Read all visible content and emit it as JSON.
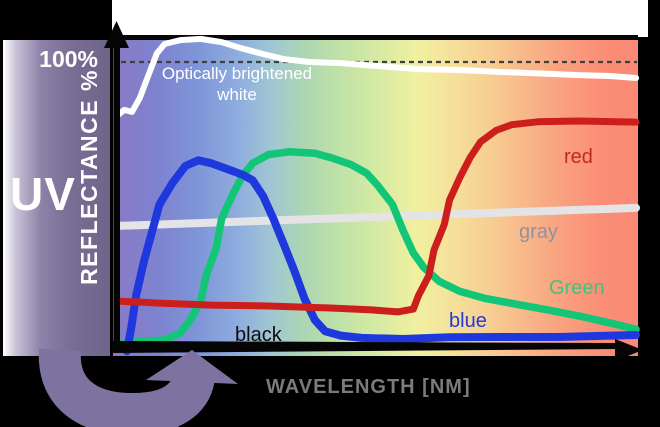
{
  "axes": {
    "y_label": "REFLECTANCE %",
    "y_max_label": "100%",
    "x_label": "WAVELENGTH [NM]",
    "uv_region_label": "UV"
  },
  "labels": {
    "optically_brightened_white": "Optically brightened\nwhite",
    "red": "red",
    "gray": "gray",
    "green": "Green",
    "blue": "blue",
    "black": "black"
  },
  "label_colors": {
    "optically_brightened_white": "#ffffff",
    "red": "#c22b20",
    "gray": "#8d93a2",
    "green": "#3fc47b",
    "blue": "#2438da",
    "black": "#0d0d0d",
    "wavelength": "#7b7b7b"
  },
  "colors": {
    "uv_arrow": "#7e72a1",
    "axis_black": "#050505",
    "reference_dash": "#3f3f3f",
    "uv_bar_stops": [
      [
        0,
        "#ffffff"
      ],
      [
        0.12,
        "#c9c2d6"
      ],
      [
        0.35,
        "#8d82a8"
      ],
      [
        0.65,
        "#786d93"
      ],
      [
        1,
        "#6f6489"
      ]
    ],
    "spectrum_stops": [
      [
        0,
        "#8a7ac4"
      ],
      [
        0.08,
        "#7e82cf"
      ],
      [
        0.16,
        "#7e95d8"
      ],
      [
        0.24,
        "#8fadde"
      ],
      [
        0.3,
        "#a0c6d4"
      ],
      [
        0.36,
        "#abd5b4"
      ],
      [
        0.42,
        "#bce0a8"
      ],
      [
        0.5,
        "#d5eaa4"
      ],
      [
        0.58,
        "#f1f0a0"
      ],
      [
        0.65,
        "#f5e09a"
      ],
      [
        0.72,
        "#f7cd92"
      ],
      [
        0.79,
        "#f8b689"
      ],
      [
        0.86,
        "#f99f7e"
      ],
      [
        0.93,
        "#fa8e77"
      ],
      [
        1,
        "#fa8a76"
      ]
    ]
  },
  "chart_data": {
    "type": "line",
    "title": "",
    "xlabel": "WAVELENGTH [NM]",
    "ylabel": "REFLECTANCE %",
    "x_axis": {
      "ticks": [],
      "note": "no numeric ticks; x spans the visible spectrum (background gradient violet to red), UV region bar at far left, arrow points toward longer wavelengths"
    },
    "y_axis": {
      "ticks": [
        "100%"
      ],
      "range_pct": [
        0,
        110
      ],
      "reference_line": {
        "value_pct": 100,
        "style": "dashed"
      }
    },
    "grid": false,
    "legend": "labels placed next to curves",
    "series": [
      {
        "name": "gray",
        "label": "gray",
        "color": "#e4e4e7",
        "width": 8,
        "points": [
          [
            0,
            42.5
          ],
          [
            1,
            48.8
          ]
        ]
      },
      {
        "name": "green",
        "label": "Green",
        "color": "#12c577",
        "width": 7.5,
        "points": [
          [
            0,
            1.4
          ],
          [
            0.04,
            1.8
          ],
          [
            0.09,
            2.5
          ],
          [
            0.12,
            4.9
          ],
          [
            0.14,
            9.5
          ],
          [
            0.16,
            16.5
          ],
          [
            0.17,
            25
          ],
          [
            0.19,
            35
          ],
          [
            0.2,
            45
          ],
          [
            0.22,
            53
          ],
          [
            0.24,
            60
          ],
          [
            0.26,
            64.5
          ],
          [
            0.29,
            67.5
          ],
          [
            0.33,
            68.5
          ],
          [
            0.38,
            68
          ],
          [
            0.41,
            66.5
          ],
          [
            0.45,
            64
          ],
          [
            0.48,
            61
          ],
          [
            0.5,
            57
          ],
          [
            0.53,
            50
          ],
          [
            0.55,
            41
          ],
          [
            0.57,
            33
          ],
          [
            0.59,
            28
          ],
          [
            0.62,
            23
          ],
          [
            0.66,
            19.5
          ],
          [
            0.71,
            17
          ],
          [
            0.77,
            15
          ],
          [
            0.83,
            13
          ],
          [
            0.9,
            10.5
          ],
          [
            0.96,
            8
          ],
          [
            1,
            6.2
          ]
        ]
      },
      {
        "name": "blue",
        "label": "blue",
        "color": "#1e38dd",
        "width": 8,
        "points": [
          [
            0.017,
            -1.5
          ],
          [
            0.025,
            6
          ],
          [
            0.035,
            18
          ],
          [
            0.05,
            30
          ],
          [
            0.065,
            40
          ],
          [
            0.08,
            50
          ],
          [
            0.105,
            57.5
          ],
          [
            0.13,
            63.5
          ],
          [
            0.155,
            65.5
          ],
          [
            0.18,
            64.5
          ],
          [
            0.21,
            62.5
          ],
          [
            0.24,
            60.5
          ],
          [
            0.26,
            58.5
          ],
          [
            0.28,
            53
          ],
          [
            0.3,
            45
          ],
          [
            0.32,
            36
          ],
          [
            0.34,
            27
          ],
          [
            0.36,
            17
          ],
          [
            0.38,
            9.5
          ],
          [
            0.4,
            5.5
          ],
          [
            0.43,
            4
          ],
          [
            0.47,
            3.2
          ],
          [
            0.55,
            2.8
          ],
          [
            0.64,
            3.4
          ],
          [
            0.74,
            3.5
          ],
          [
            0.85,
            3.5
          ],
          [
            1,
            4.2
          ]
        ]
      },
      {
        "name": "red",
        "label": "red",
        "color": "#cc1f1b",
        "width": 7,
        "points": [
          [
            0,
            16.1
          ],
          [
            0.08,
            15.4
          ],
          [
            0.18,
            14.7
          ],
          [
            0.29,
            14.4
          ],
          [
            0.41,
            13.7
          ],
          [
            0.49,
            13
          ],
          [
            0.54,
            12.3
          ],
          [
            0.57,
            13.3
          ],
          [
            0.58,
            18
          ],
          [
            0.6,
            25
          ],
          [
            0.61,
            34
          ],
          [
            0.63,
            43
          ],
          [
            0.64,
            51.5
          ],
          [
            0.66,
            59.5
          ],
          [
            0.68,
            66.5
          ],
          [
            0.7,
            72
          ],
          [
            0.73,
            76
          ],
          [
            0.76,
            78
          ],
          [
            0.81,
            79
          ],
          [
            0.89,
            79.3
          ],
          [
            1,
            78.9
          ]
        ]
      },
      {
        "name": "white",
        "label": "Optically brightened white",
        "color": "#ffffff",
        "width": 6,
        "points": [
          [
            0,
            81.4
          ],
          [
            0.012,
            83.2
          ],
          [
            0.027,
            82.5
          ],
          [
            0.042,
            87.4
          ],
          [
            0.058,
            95
          ],
          [
            0.075,
            103
          ],
          [
            0.09,
            106.3
          ],
          [
            0.12,
            107.7
          ],
          [
            0.16,
            108.1
          ],
          [
            0.2,
            107
          ],
          [
            0.235,
            105
          ],
          [
            0.28,
            102.8
          ],
          [
            0.32,
            101
          ],
          [
            0.37,
            100
          ],
          [
            0.43,
            99.6
          ],
          [
            0.5,
            98.6
          ],
          [
            0.58,
            97.5
          ],
          [
            0.66,
            97.2
          ],
          [
            0.74,
            96.5
          ],
          [
            0.81,
            96
          ],
          [
            0.89,
            95.4
          ],
          [
            0.95,
            95.1
          ],
          [
            1,
            94.4
          ]
        ]
      },
      {
        "name": "black",
        "label": "black",
        "color": "#050505",
        "width": 8,
        "drawn_as_axis": true,
        "points": [
          [
            0,
            1.8
          ],
          [
            1,
            0.3
          ]
        ]
      }
    ]
  }
}
